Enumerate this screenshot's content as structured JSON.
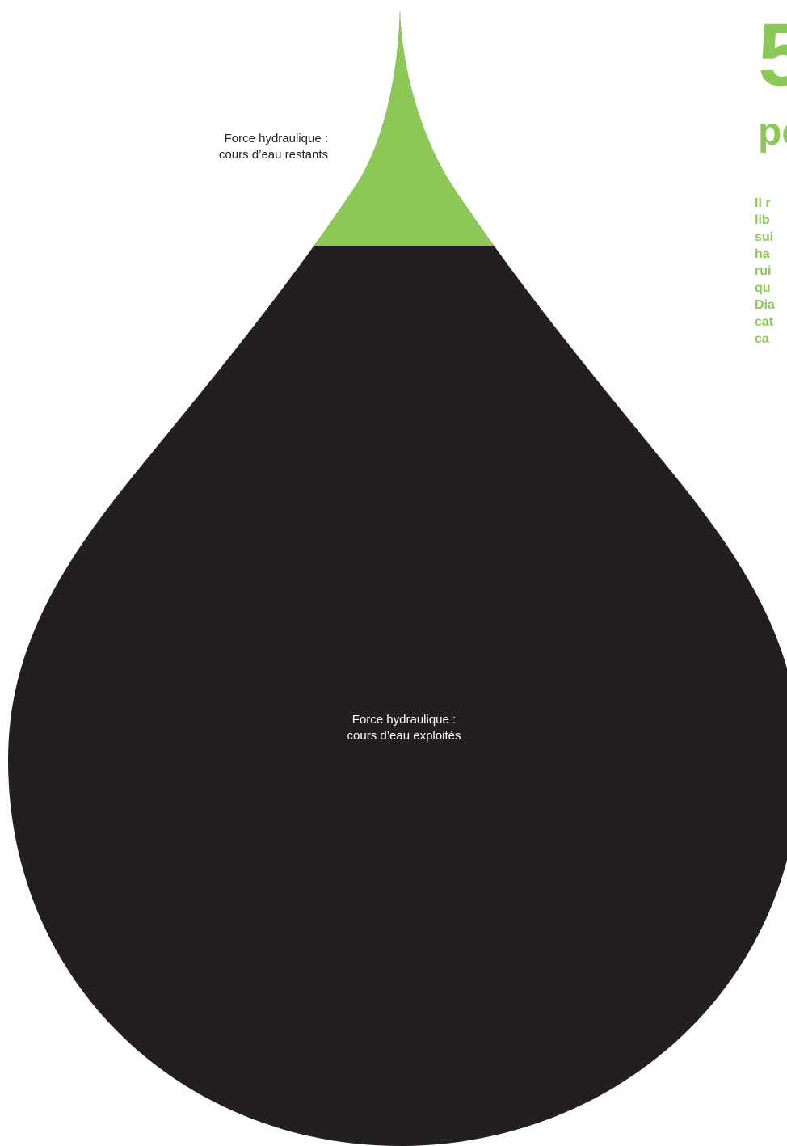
{
  "chart_data": {
    "type": "pie",
    "segments": [
      {
        "label": "Force hydraulique : cours d’eau restants",
        "color": "#8bc855"
      },
      {
        "label": "Force hydraulique : cours d’eau exploités",
        "color": "#231f20"
      }
    ]
  },
  "labels": {
    "top": {
      "line1": "Force hydraulique :",
      "line2": "cours d’eau restants"
    },
    "main": {
      "line1": "Force hydraulique :",
      "line2": "cours d’eau exploités"
    }
  },
  "side_panel": {
    "number": "5",
    "headline": "po",
    "body_lines": [
      "Il r",
      "lib",
      "sui",
      "ha",
      "rui",
      "qu",
      "Dia",
      "cat",
      "ca"
    ]
  },
  "colors": {
    "accent": "#8bc855",
    "dark": "#231f20"
  }
}
